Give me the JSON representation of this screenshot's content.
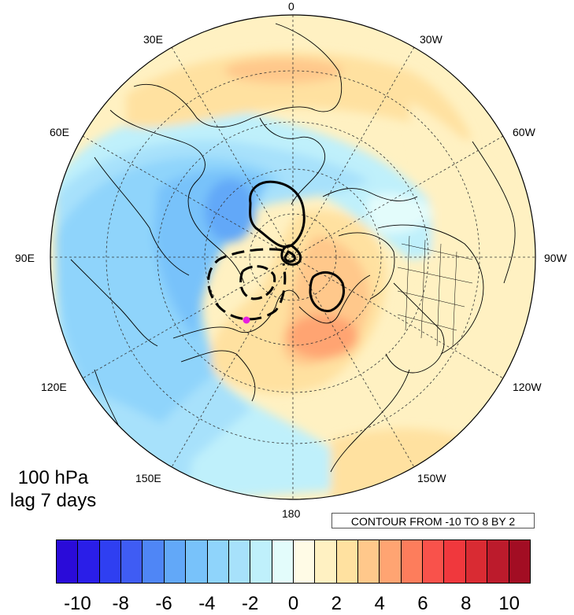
{
  "map": {
    "projection": "north polar stereographic",
    "longitude_labels": {
      "top": "0",
      "upper_left_1": "30E",
      "upper_right_1": "30W",
      "upper_left_2": "60E",
      "upper_right_2": "60W",
      "left": "90E",
      "right": "90W",
      "lower_left_2": "120E",
      "lower_right_2": "120W",
      "lower_left_1": "150E",
      "lower_right_1": "150W",
      "bottom": "180"
    },
    "title": {
      "level": "100 hPa",
      "lag": "lag 7 days"
    },
    "contour_info": "CONTOUR FROM -10 TO 8 BY 2",
    "marker_color": "#e81ee0"
  },
  "colorbar": {
    "colors": [
      "#2a0bd9",
      "#2a1ee8",
      "#2f3ff1",
      "#3f5cf4",
      "#4f86f6",
      "#62a8f8",
      "#78c2fa",
      "#8fd4fb",
      "#a7e1fb",
      "#bff0fb",
      "#e3fcfb",
      "#fffbe6",
      "#fff1c2",
      "#ffe1a0",
      "#ffc88b",
      "#ffa472",
      "#fd7d5c",
      "#f9524b",
      "#f0383d",
      "#d92b33",
      "#bc1b2c",
      "#a20d23"
    ],
    "labels": [
      "-10",
      "-8",
      "-6",
      "-4",
      "-2",
      "0",
      "2",
      "4",
      "6",
      "8",
      "10"
    ]
  }
}
